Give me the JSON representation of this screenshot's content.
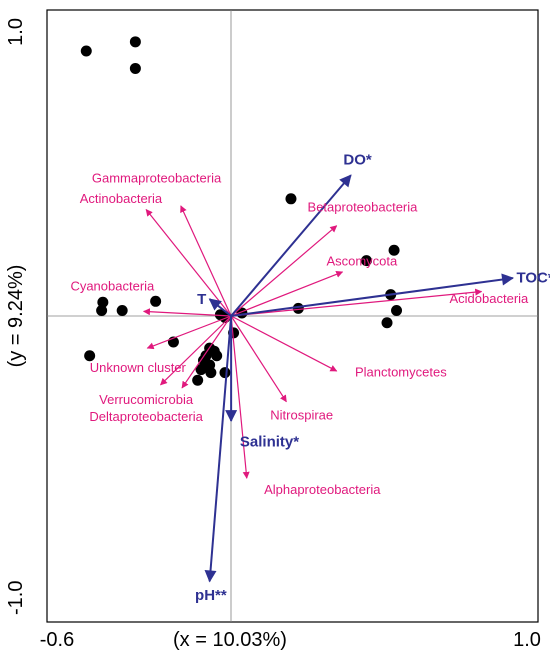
{
  "chart_data": {
    "type": "scatter",
    "title": "",
    "xlabel": "(x = 10.03%)",
    "ylabel": "(y = 9.24%)",
    "xlim": [
      -0.6,
      1.0
    ],
    "ylim": [
      -1.0,
      1.0
    ],
    "x_tick_labels": [
      "-0.6",
      "1.0"
    ],
    "y_tick_labels": [
      "1.0",
      "-1.0"
    ],
    "colors": {
      "points": "#000000",
      "species_arrows": "#e0197d",
      "env_arrows": "#2e3192",
      "zero_lines": "#808080"
    },
    "points": [
      {
        "x": -0.472,
        "y": 0.866
      },
      {
        "x": -0.312,
        "y": 0.896
      },
      {
        "x": -0.312,
        "y": 0.809
      },
      {
        "x": 0.195,
        "y": 0.383
      },
      {
        "x": 0.441,
        "y": 0.181
      },
      {
        "x": 0.531,
        "y": 0.215
      },
      {
        "x": 0.52,
        "y": 0.07
      },
      {
        "x": 0.539,
        "y": 0.018
      },
      {
        "x": 0.508,
        "y": -0.022
      },
      {
        "x": 0.219,
        "y": 0.025
      },
      {
        "x": -0.418,
        "y": 0.045
      },
      {
        "x": -0.422,
        "y": 0.018
      },
      {
        "x": -0.355,
        "y": 0.018
      },
      {
        "x": -0.246,
        "y": 0.048
      },
      {
        "x": -0.461,
        "y": -0.13
      },
      {
        "x": -0.188,
        "y": -0.085
      },
      {
        "x": 0.008,
        "y": -0.055
      },
      {
        "x": -0.02,
        "y": -0.005
      },
      {
        "x": -0.035,
        "y": 0.004
      },
      {
        "x": 0.035,
        "y": 0.01
      },
      {
        "x": -0.055,
        "y": -0.115
      },
      {
        "x": -0.07,
        "y": -0.105
      },
      {
        "x": -0.082,
        "y": -0.13
      },
      {
        "x": -0.047,
        "y": -0.13
      },
      {
        "x": -0.098,
        "y": -0.175
      },
      {
        "x": -0.066,
        "y": -0.185
      },
      {
        "x": -0.109,
        "y": -0.21
      },
      {
        "x": -0.02,
        "y": -0.185
      },
      {
        "x": -0.09,
        "y": -0.145
      },
      {
        "x": -0.07,
        "y": -0.16
      }
    ],
    "species": [
      {
        "name": "Gammaproteobacteria",
        "x": -0.164,
        "y": 0.36
      },
      {
        "name": "Actinobacteria",
        "x": -0.277,
        "y": 0.348
      },
      {
        "name": "Betaproteobacteria",
        "x": 0.344,
        "y": 0.295
      },
      {
        "name": "Ascomycota",
        "x": 0.363,
        "y": 0.144
      },
      {
        "name": "Acidobacteria",
        "x": 0.816,
        "y": 0.08
      },
      {
        "name": "Cyanobacteria",
        "x": -0.285,
        "y": 0.015
      },
      {
        "name": "Unknown cluster",
        "x": -0.273,
        "y": -0.105
      },
      {
        "name": "Planctomycetes",
        "x": 0.344,
        "y": -0.18
      },
      {
        "name": "Verrucomicrobia",
        "x": -0.23,
        "y": -0.225
      },
      {
        "name": "Nitrospirae",
        "x": 0.18,
        "y": -0.28
      },
      {
        "name": "Deltaproteobacteria",
        "x": -0.16,
        "y": -0.235
      },
      {
        "name": "Alphaproteobacteria",
        "x": 0.051,
        "y": -0.53
      }
    ],
    "env_factors": [
      {
        "name": "DO*",
        "x": 0.39,
        "y": 0.46
      },
      {
        "name": "TOC**",
        "x": 0.918,
        "y": 0.124
      },
      {
        "name": "T",
        "x": -0.07,
        "y": 0.055
      },
      {
        "name": "Salinity*",
        "x": 0.0,
        "y": -0.343
      },
      {
        "name": "pH**",
        "x": -0.07,
        "y": -0.867
      }
    ],
    "species_labels": [
      {
        "text": "Gammaproteobacteria",
        "x": -0.243,
        "y": 0.436
      },
      {
        "text": "Actinobacteria",
        "x": -0.359,
        "y": 0.37
      },
      {
        "text": "Betaproteobacteria",
        "x": 0.428,
        "y": 0.341
      },
      {
        "text": "Ascomycota",
        "x": 0.426,
        "y": 0.165
      },
      {
        "text": "Acidobacteria",
        "x": 0.84,
        "y": 0.042
      },
      {
        "text": "Cyanobacteria",
        "x": -0.387,
        "y": 0.083
      },
      {
        "text": "Unknown cluster",
        "x": -0.304,
        "y": -0.183
      },
      {
        "text": "Planctomycetes",
        "x": 0.553,
        "y": -0.198
      },
      {
        "text": "Verrucomicrobia",
        "x": -0.277,
        "y": -0.288
      },
      {
        "text": "Nitrospirae",
        "x": 0.23,
        "y": -0.338
      },
      {
        "text": "Deltaproteobacteria",
        "x": -0.277,
        "y": -0.343
      },
      {
        "text": "Alphaproteobacteria",
        "x": 0.297,
        "y": -0.581
      }
    ],
    "env_labels": [
      {
        "text": "DO*",
        "x": 0.412,
        "y": 0.495
      },
      {
        "text": "TOC**",
        "x": 1.0,
        "y": 0.109
      },
      {
        "text": "T",
        "x": -0.096,
        "y": 0.04
      },
      {
        "text": "Salinity*",
        "x": 0.125,
        "y": -0.426
      },
      {
        "text": "pH**",
        "x": -0.066,
        "y": -0.928
      }
    ]
  }
}
